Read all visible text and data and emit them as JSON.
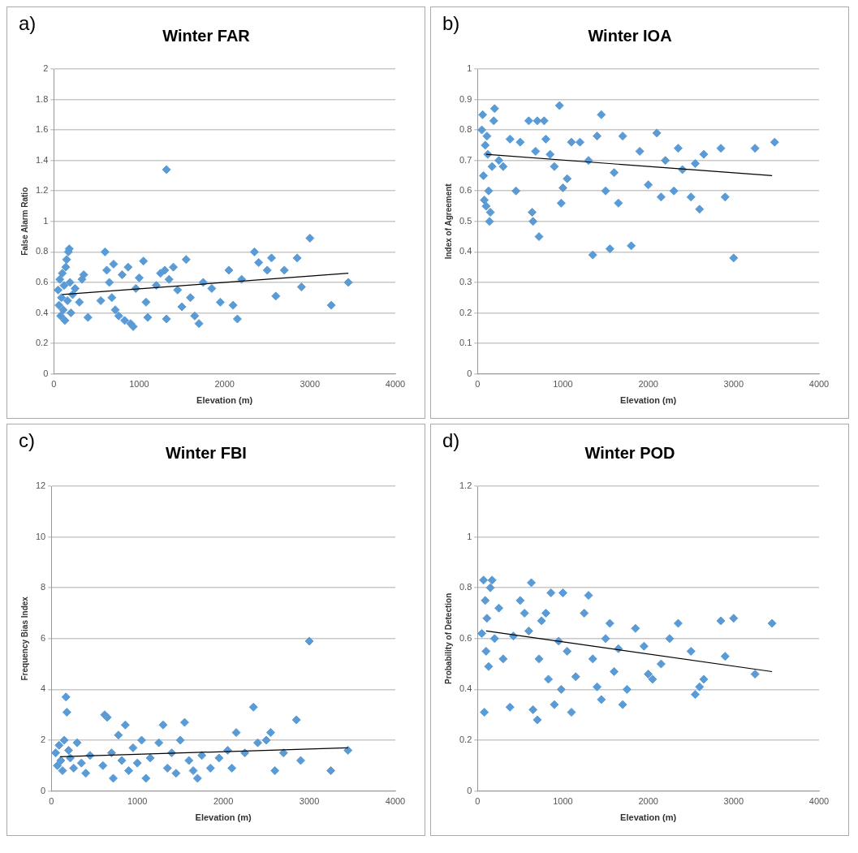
{
  "chart_data": [
    {
      "type": "scatter",
      "title": "Winter FAR",
      "xlabel": "Elevation (m)",
      "ylabel": "False Alarm Ratio",
      "annotations": [
        "a)"
      ],
      "xlim": [
        0,
        4000
      ],
      "xticks": [
        0,
        1000,
        2000,
        3000,
        4000
      ],
      "ylim": [
        0,
        2
      ],
      "yticks": [
        0,
        0.2,
        0.4,
        0.6,
        0.8,
        1,
        1.2,
        1.4,
        1.6,
        1.8,
        2
      ],
      "grid": "y",
      "legend": false,
      "series": [
        {
          "color": "#5b9bd5",
          "marker": "diamond",
          "x": [
            50,
            60,
            70,
            80,
            90,
            100,
            110,
            120,
            130,
            140,
            150,
            160,
            170,
            180,
            190,
            200,
            220,
            250,
            300,
            330,
            350,
            400,
            550,
            600,
            620,
            650,
            680,
            700,
            720,
            760,
            800,
            830,
            870,
            900,
            930,
            960,
            1000,
            1050,
            1080,
            1100,
            1200,
            1250,
            1300,
            1320,
            1320,
            1350,
            1400,
            1450,
            1500,
            1550,
            1600,
            1650,
            1700,
            1750,
            1850,
            1950,
            2050,
            2100,
            2150,
            2200,
            2350,
            2400,
            2500,
            2550,
            2600,
            2700,
            2850,
            2900,
            3000,
            3250,
            3450
          ],
          "values": [
            0.55,
            0.45,
            0.62,
            0.38,
            0.5,
            0.66,
            0.42,
            0.58,
            0.35,
            0.7,
            0.75,
            0.48,
            0.8,
            0.82,
            0.6,
            0.4,
            0.52,
            0.56,
            0.47,
            0.62,
            0.65,
            0.37,
            0.48,
            0.8,
            0.68,
            0.6,
            0.5,
            0.72,
            0.42,
            0.38,
            0.65,
            0.35,
            0.7,
            0.33,
            0.31,
            0.56,
            0.63,
            0.74,
            0.47,
            0.37,
            0.58,
            0.66,
            0.68,
            1.34,
            0.36,
            0.62,
            0.7,
            0.55,
            0.44,
            0.75,
            0.5,
            0.38,
            0.33,
            0.6,
            0.56,
            0.47,
            0.68,
            0.45,
            0.36,
            0.62,
            0.8,
            0.73,
            0.68,
            0.76,
            0.51,
            0.68,
            0.76,
            0.57,
            0.89,
            0.45,
            0.6
          ]
        },
        {
          "type": "line",
          "color": "#000000",
          "marker": "none",
          "x": [
            100,
            3450
          ],
          "values": [
            0.52,
            0.66
          ]
        }
      ]
    },
    {
      "type": "scatter",
      "title": "Winter IOA",
      "xlabel": "Elevation (m)",
      "ylabel": "Index of Agreement",
      "annotations": [
        "b)"
      ],
      "xlim": [
        0,
        4000
      ],
      "xticks": [
        0,
        1000,
        2000,
        3000,
        4000
      ],
      "ylim": [
        0,
        1
      ],
      "yticks": [
        0,
        0.1,
        0.2,
        0.3,
        0.4,
        0.5,
        0.6,
        0.7,
        0.8,
        0.9,
        1
      ],
      "grid": "y",
      "legend": false,
      "series": [
        {
          "color": "#5b9bd5",
          "marker": "diamond",
          "x": [
            50,
            60,
            70,
            80,
            90,
            100,
            110,
            120,
            130,
            140,
            150,
            170,
            190,
            200,
            250,
            300,
            380,
            450,
            500,
            600,
            640,
            650,
            680,
            700,
            720,
            780,
            800,
            850,
            900,
            960,
            980,
            1000,
            1050,
            1100,
            1200,
            1300,
            1350,
            1400,
            1450,
            1500,
            1550,
            1600,
            1650,
            1700,
            1800,
            1900,
            2000,
            2100,
            2150,
            2200,
            2300,
            2350,
            2400,
            2500,
            2550,
            2600,
            2650,
            2850,
            2900,
            3000,
            3250,
            3480
          ],
          "values": [
            0.8,
            0.85,
            0.65,
            0.57,
            0.75,
            0.55,
            0.78,
            0.72,
            0.6,
            0.5,
            0.53,
            0.68,
            0.83,
            0.87,
            0.7,
            0.68,
            0.77,
            0.6,
            0.76,
            0.83,
            0.53,
            0.5,
            0.73,
            0.83,
            0.45,
            0.83,
            0.77,
            0.72,
            0.68,
            0.88,
            0.56,
            0.61,
            0.64,
            0.76,
            0.76,
            0.7,
            0.39,
            0.78,
            0.85,
            0.6,
            0.41,
            0.66,
            0.56,
            0.78,
            0.42,
            0.73,
            0.62,
            0.79,
            0.58,
            0.7,
            0.6,
            0.74,
            0.67,
            0.58,
            0.69,
            0.54,
            0.72,
            0.74,
            0.58,
            0.38,
            0.74,
            0.76
          ]
        },
        {
          "type": "line",
          "color": "#000000",
          "marker": "none",
          "x": [
            100,
            3450
          ],
          "values": [
            0.72,
            0.65
          ]
        }
      ]
    },
    {
      "type": "scatter",
      "title": "Winter FBI",
      "xlabel": "Elevation (m)",
      "ylabel": "Frequency Bias Index",
      "annotations": [
        "c)"
      ],
      "xlim": [
        0,
        4000
      ],
      "xticks": [
        0,
        1000,
        2000,
        3000,
        4000
      ],
      "ylim": [
        0,
        12
      ],
      "yticks": [
        0,
        2,
        4,
        6,
        8,
        10,
        12
      ],
      "grid": "y",
      "legend": false,
      "series": [
        {
          "color": "#5b9bd5",
          "marker": "diamond",
          "x": [
            50,
            70,
            90,
            110,
            130,
            150,
            170,
            180,
            200,
            220,
            260,
            300,
            350,
            400,
            450,
            600,
            620,
            650,
            700,
            720,
            780,
            820,
            860,
            900,
            950,
            1000,
            1050,
            1100,
            1150,
            1250,
            1300,
            1350,
            1400,
            1450,
            1500,
            1550,
            1600,
            1650,
            1700,
            1750,
            1850,
            1950,
            2050,
            2100,
            2150,
            2250,
            2350,
            2400,
            2500,
            2550,
            2600,
            2700,
            2850,
            2900,
            3000,
            3250,
            3450
          ],
          "values": [
            1.5,
            1.0,
            1.8,
            1.2,
            0.8,
            2.0,
            3.7,
            3.1,
            1.6,
            1.3,
            0.9,
            1.9,
            1.1,
            0.7,
            1.4,
            1.0,
            3.0,
            2.9,
            1.5,
            0.5,
            2.2,
            1.2,
            2.6,
            0.8,
            1.7,
            1.1,
            2.0,
            0.5,
            1.3,
            1.9,
            2.6,
            0.9,
            1.5,
            0.7,
            2.0,
            2.7,
            1.2,
            0.8,
            0.5,
            1.4,
            0.9,
            1.3,
            1.6,
            0.9,
            2.3,
            1.5,
            3.3,
            1.9,
            2.0,
            2.3,
            0.8,
            1.5,
            2.8,
            1.2,
            5.9,
            0.8,
            1.6
          ]
        },
        {
          "type": "line",
          "color": "#000000",
          "marker": "none",
          "x": [
            100,
            3450
          ],
          "values": [
            1.35,
            1.7
          ]
        }
      ]
    },
    {
      "type": "scatter",
      "title": "Winter POD",
      "xlabel": "Elevation (m)",
      "ylabel": "Probability of Detection",
      "annotations": [
        "d)"
      ],
      "xlim": [
        0,
        4000
      ],
      "xticks": [
        0,
        1000,
        2000,
        3000,
        4000
      ],
      "ylim": [
        0,
        1.2
      ],
      "yticks": [
        0,
        0.2,
        0.4,
        0.6,
        0.8,
        1,
        1.2
      ],
      "grid": "y",
      "legend": false,
      "series": [
        {
          "color": "#5b9bd5",
          "marker": "diamond",
          "x": [
            50,
            70,
            80,
            90,
            100,
            110,
            130,
            150,
            170,
            200,
            250,
            300,
            380,
            420,
            500,
            550,
            600,
            630,
            650,
            700,
            720,
            750,
            800,
            830,
            860,
            900,
            950,
            980,
            1000,
            1050,
            1100,
            1150,
            1250,
            1300,
            1350,
            1400,
            1450,
            1500,
            1550,
            1600,
            1650,
            1700,
            1750,
            1850,
            1950,
            2000,
            2050,
            2150,
            2250,
            2350,
            2500,
            2550,
            2600,
            2650,
            2850,
            2900,
            3000,
            3250,
            3450
          ],
          "values": [
            0.62,
            0.83,
            0.31,
            0.75,
            0.55,
            0.68,
            0.49,
            0.8,
            0.83,
            0.6,
            0.72,
            0.52,
            0.33,
            0.61,
            0.75,
            0.7,
            0.63,
            0.82,
            0.32,
            0.28,
            0.52,
            0.67,
            0.7,
            0.44,
            0.78,
            0.34,
            0.59,
            0.4,
            0.78,
            0.55,
            0.31,
            0.45,
            0.7,
            0.77,
            0.52,
            0.41,
            0.36,
            0.6,
            0.66,
            0.47,
            0.56,
            0.34,
            0.4,
            0.64,
            0.57,
            0.46,
            0.44,
            0.5,
            0.6,
            0.66,
            0.55,
            0.38,
            0.41,
            0.44,
            0.67,
            0.53,
            0.68,
            0.46,
            0.66
          ]
        },
        {
          "type": "line",
          "color": "#000000",
          "marker": "none",
          "x": [
            100,
            3450
          ],
          "values": [
            0.63,
            0.47
          ]
        }
      ]
    }
  ]
}
